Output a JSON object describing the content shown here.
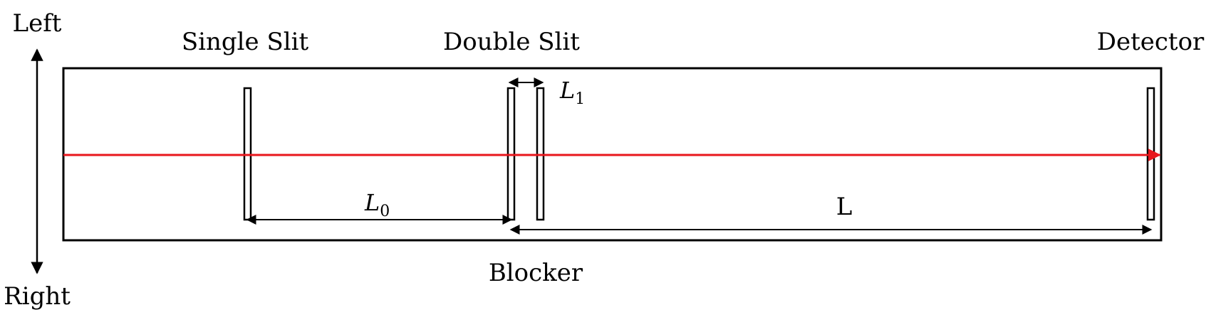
{
  "labels": {
    "left": "Left",
    "right": "Right",
    "single_slit": "Single Slit",
    "double_slit": "Double Slit",
    "detector": "Detector",
    "blocker": "Blocker"
  },
  "dimensions": {
    "l0_symbol": "L",
    "l0_subscript": "0",
    "l1_symbol": "L",
    "l1_subscript": "1",
    "l_symbol": "L"
  },
  "colors": {
    "beam": "#e8161c",
    "outline": "#000000"
  }
}
